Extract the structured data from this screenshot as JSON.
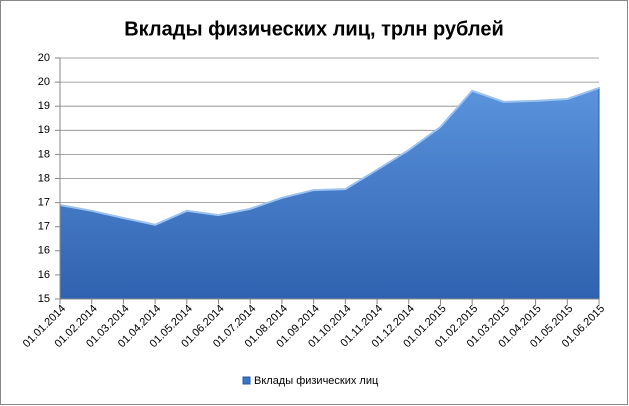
{
  "chart_data": {
    "type": "area",
    "title": "Вклады физических лиц, трлн рублей",
    "categories": [
      "01.01.2014",
      "01.02.2014",
      "01.03.2014",
      "01.04.2014",
      "01.05.2014",
      "01.06.2014",
      "01.07.2014",
      "01.08.2014",
      "01.09.2014",
      "01.10.2014",
      "01.11.2014",
      "01.12.2014",
      "01.01.2015",
      "01.02.2015",
      "01.03.2015",
      "01.04.2015",
      "01.05.2015",
      "01.06.2015"
    ],
    "series": [
      {
        "name": "Вклады физических лиц",
        "color": "#3a74c4",
        "values": [
          16.95,
          16.83,
          16.68,
          16.54,
          16.83,
          16.74,
          16.87,
          17.1,
          17.26,
          17.28,
          17.68,
          18.09,
          18.57,
          19.32,
          19.09,
          19.11,
          19.15,
          19.38
        ]
      }
    ],
    "ylim": [
      15,
      20
    ],
    "yticks": [
      {
        "value": 15,
        "label": "15"
      },
      {
        "value": 15.5,
        "label": "16"
      },
      {
        "value": 16,
        "label": "16"
      },
      {
        "value": 16.5,
        "label": "17"
      },
      {
        "value": 17,
        "label": "17"
      },
      {
        "value": 17.5,
        "label": "18"
      },
      {
        "value": 18,
        "label": "18"
      },
      {
        "value": 18.5,
        "label": "19"
      },
      {
        "value": 19,
        "label": "19"
      },
      {
        "value": 19.5,
        "label": "20"
      },
      {
        "value": 20,
        "label": "20"
      }
    ],
    "grid": true,
    "legend": "bottom"
  }
}
